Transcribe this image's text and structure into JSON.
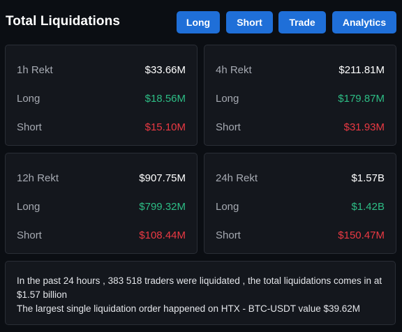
{
  "header": {
    "title": "Total Liquidations",
    "buttons": [
      "Long",
      "Short",
      "Trade",
      "Analytics"
    ],
    "accent": "#1f6fd8"
  },
  "cards": [
    {
      "period": "1h Rekt",
      "total": "$33.66M",
      "long_label": "Long",
      "long": "$18.56M",
      "short_label": "Short",
      "short": "$15.10M"
    },
    {
      "period": "4h Rekt",
      "total": "$211.81M",
      "long_label": "Long",
      "long": "$179.87M",
      "short_label": "Short",
      "short": "$31.93M"
    },
    {
      "period": "12h Rekt",
      "total": "$907.75M",
      "long_label": "Long",
      "long": "$799.32M",
      "short_label": "Short",
      "short": "$108.44M"
    },
    {
      "period": "24h Rekt",
      "total": "$1.57B",
      "long_label": "Long",
      "long": "$1.42B",
      "short_label": "Short",
      "short": "$150.47M"
    }
  ],
  "colors": {
    "long": "#2dbd85",
    "short": "#ea3943"
  },
  "summary": {
    "line1": "In the past 24 hours , 383 518 traders were liquidated , the total liquidations comes in at $1.57 billion",
    "line2": "The largest single liquidation order happened on HTX - BTC-USDT value $39.62M"
  }
}
